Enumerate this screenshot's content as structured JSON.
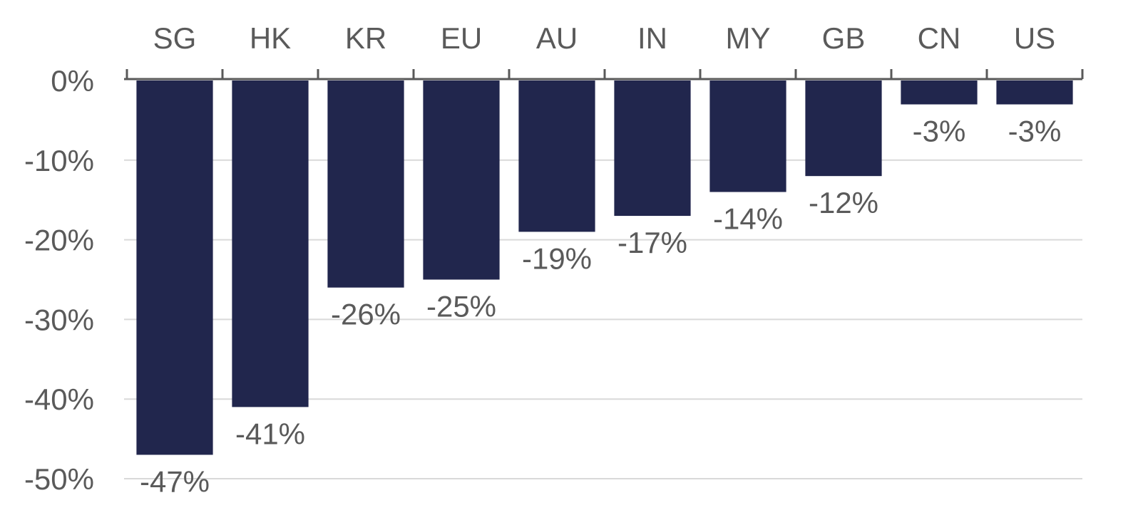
{
  "chart_data": {
    "type": "bar",
    "orientation": "vertical",
    "categories": [
      "SG",
      "HK",
      "KR",
      "EU",
      "AU",
      "IN",
      "MY",
      "GB",
      "CN",
      "US"
    ],
    "values": [
      -47,
      -41,
      -26,
      -25,
      -19,
      -17,
      -14,
      -12,
      -3,
      -3
    ],
    "data_labels": [
      "-47%",
      "-41%",
      "-26%",
      "-25%",
      "-19%",
      "-17%",
      "-14%",
      "-12%",
      "-3%",
      "-3%"
    ],
    "ylim": [
      -50,
      0
    ],
    "yticks": [
      0,
      -10,
      -20,
      -30,
      -40,
      -50
    ],
    "ytick_labels": [
      "0%",
      "-10%",
      "-20%",
      "-30%",
      "-40%",
      "-50%"
    ],
    "category_axis_position": "top",
    "grid": true,
    "legend": "none",
    "colors": {
      "bar": "#21264d",
      "grid": "#d9d9d9",
      "axis": "#595959",
      "text": "#5a5a5a"
    }
  }
}
